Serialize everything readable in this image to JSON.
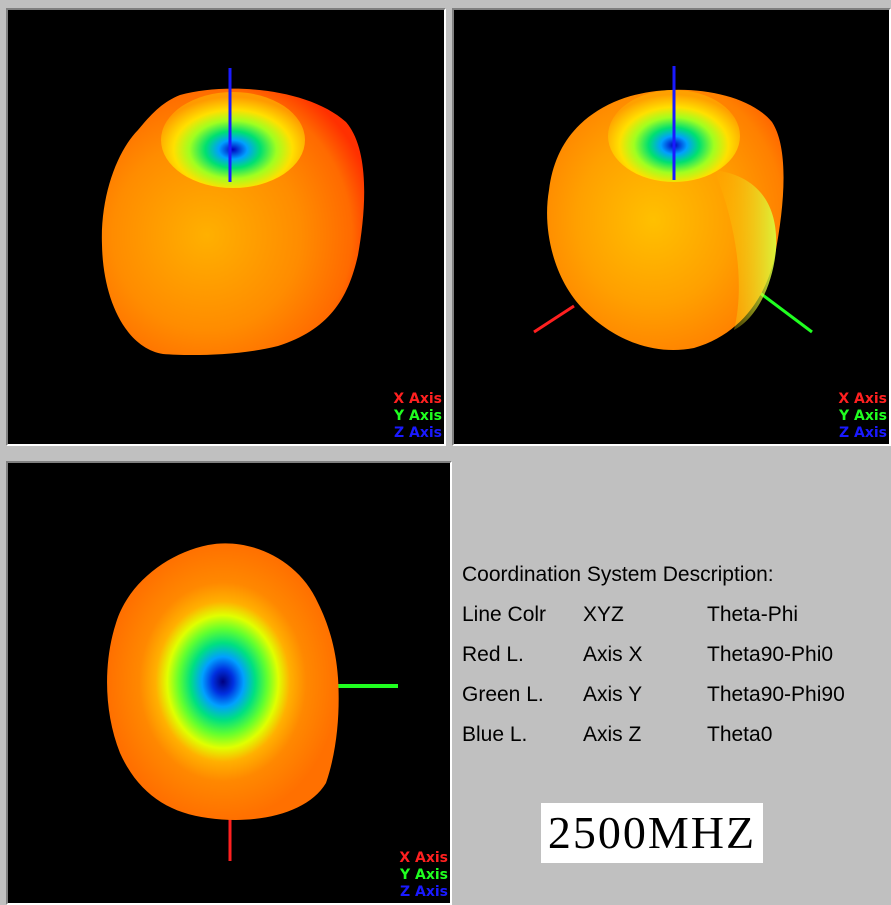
{
  "colors": {
    "x_axis": "#ff2020",
    "y_axis": "#20ff20",
    "z_axis": "#1a1aff",
    "background": "#c0c0c0",
    "viewport": "#000000"
  },
  "views": [
    {
      "legend": [
        "X Axis",
        "Y Axis",
        "Z Axis"
      ]
    },
    {
      "legend": [
        "X Axis",
        "Y Axis",
        "Z Axis"
      ]
    },
    {
      "legend": [
        "X Axis",
        "Y Axis",
        "Z Axis"
      ]
    }
  ],
  "description": {
    "title": "Coordination System Description:",
    "rows": [
      [
        "Line Colr",
        "XYZ",
        "Theta-Phi"
      ],
      [
        "Red L.",
        "Axis X",
        "Theta90-Phi0"
      ],
      [
        "Green L.",
        "Axis Y",
        "Theta90-Phi90"
      ],
      [
        "Blue L.",
        "Axis Z",
        "Theta0"
      ]
    ]
  },
  "frequency_label": "2500MHZ"
}
